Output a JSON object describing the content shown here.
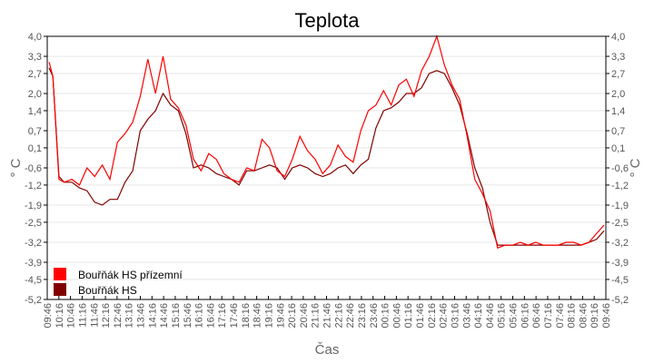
{
  "chart_data": {
    "type": "line",
    "title": "Teplota",
    "xlabel": "Čas",
    "ylabel": "° C",
    "ylim": [
      -5.2,
      4.0
    ],
    "grid": true,
    "legend_position": "bottom-left",
    "y_ticks": [
      "4,0",
      "3,3",
      "2,7",
      "2,0",
      "1,4",
      "0,7",
      "0,1",
      "-0,6",
      "-1,2",
      "-1,9",
      "-2,5",
      "-3,2",
      "-3,9",
      "-4,5",
      "-5,2"
    ],
    "y_tick_values": [
      4.0,
      3.3,
      2.7,
      2.0,
      1.4,
      0.7,
      0.1,
      -0.6,
      -1.2,
      -1.9,
      -2.5,
      -3.2,
      -3.9,
      -4.5,
      -5.2
    ],
    "x_ticks": [
      "09:46",
      "10:16",
      "10:46",
      "11:16",
      "11:46",
      "12:16",
      "12:46",
      "13:16",
      "13:46",
      "14:16",
      "14:46",
      "15:16",
      "15:46",
      "16:16",
      "16:46",
      "17:16",
      "17:46",
      "18:16",
      "18:46",
      "19:16",
      "19:46",
      "20:16",
      "20:46",
      "21:16",
      "21:46",
      "22:16",
      "22:46",
      "23:16",
      "23:46",
      "00:16",
      "00:46",
      "01:16",
      "01:46",
      "02:16",
      "02:46",
      "03:16",
      "03:46",
      "04:16",
      "04:46",
      "05:16",
      "05:46",
      "06:16",
      "06:46",
      "07:16",
      "07:46",
      "08:16",
      "08:46",
      "09:16",
      "09:46"
    ],
    "series": [
      {
        "name": "Bouřňák HS přízemní",
        "color": "#ff0000",
        "values": [
          3.1,
          2.6,
          -1.0,
          -1.1,
          -1.0,
          -1.2,
          -0.6,
          -0.9,
          -0.5,
          -1.0,
          0.3,
          0.6,
          1.0,
          1.9,
          3.2,
          2.0,
          3.3,
          1.8,
          1.5,
          0.9,
          -0.3,
          -0.7,
          -0.1,
          -0.3,
          -0.8,
          -1.0,
          -1.1,
          -0.6,
          -0.7,
          0.4,
          0.1,
          -0.7,
          -0.9,
          -0.3,
          0.5,
          0.0,
          -0.3,
          -0.8,
          -0.5,
          0.2,
          -0.2,
          -0.4,
          0.7,
          1.4,
          1.6,
          2.1,
          1.6,
          2.3,
          2.5,
          1.9,
          2.8,
          3.3,
          4.0,
          3.0,
          2.3,
          1.8,
          0.5,
          -1.0,
          -1.5,
          -2.1,
          -3.4,
          -3.3,
          -3.3,
          -3.2,
          -3.3,
          -3.2,
          -3.3,
          -3.3,
          -3.3,
          -3.2,
          -3.2,
          -3.3,
          -3.2,
          -2.9,
          -2.6
        ],
        "x_positions": [
          0,
          0.5,
          1.3,
          2,
          3,
          4,
          5,
          6,
          7,
          8,
          9,
          10,
          11,
          12,
          13,
          14,
          15,
          16,
          17,
          18,
          19,
          20,
          21,
          22,
          23,
          24,
          25,
          26,
          27,
          28,
          29,
          30,
          31,
          32,
          33,
          34,
          35,
          36,
          37,
          38,
          39,
          40,
          41,
          42,
          43,
          44,
          45,
          46,
          47,
          48,
          49,
          50,
          51,
          52,
          53,
          54,
          55,
          56,
          57,
          58,
          59,
          60,
          61,
          62,
          63,
          64,
          65,
          66,
          67,
          68,
          69,
          70,
          71,
          72,
          73
        ]
      },
      {
        "name": "Bouřňák HS",
        "color": "#800000",
        "values": [
          2.9,
          2.6,
          -0.9,
          -1.1,
          -1.1,
          -1.3,
          -1.4,
          -1.8,
          -1.9,
          -1.7,
          -1.7,
          -1.1,
          -0.7,
          0.7,
          1.1,
          1.4,
          2.0,
          1.6,
          1.4,
          0.6,
          -0.6,
          -0.5,
          -0.6,
          -0.8,
          -0.9,
          -1.0,
          -1.2,
          -0.7,
          -0.7,
          -0.6,
          -0.5,
          -0.6,
          -1.0,
          -0.6,
          -0.5,
          -0.6,
          -0.8,
          -0.9,
          -0.8,
          -0.6,
          -0.5,
          -0.8,
          -0.5,
          -0.3,
          0.8,
          1.4,
          1.5,
          1.7,
          2.0,
          2.0,
          2.2,
          2.7,
          2.8,
          2.7,
          2.2,
          1.6,
          0.6,
          -0.6,
          -1.3,
          -2.5,
          -3.3,
          -3.3,
          -3.3,
          -3.3,
          -3.3,
          -3.3,
          -3.3,
          -3.3,
          -3.3,
          -3.3,
          -3.3,
          -3.3,
          -3.2,
          -3.1,
          -2.8
        ],
        "x_positions": [
          0,
          0.5,
          1.3,
          2,
          3,
          4,
          5,
          6,
          7,
          8,
          9,
          10,
          11,
          12,
          13,
          14,
          15,
          16,
          17,
          18,
          19,
          20,
          21,
          22,
          23,
          24,
          25,
          26,
          27,
          28,
          29,
          30,
          31,
          32,
          33,
          34,
          35,
          36,
          37,
          38,
          39,
          40,
          41,
          42,
          43,
          44,
          45,
          46,
          47,
          48,
          49,
          50,
          51,
          52,
          53,
          54,
          55,
          56,
          57,
          58,
          59,
          60,
          61,
          62,
          63,
          64,
          65,
          66,
          67,
          68,
          69,
          70,
          71,
          72,
          73
        ]
      }
    ]
  },
  "legend": {
    "items": [
      {
        "label": "Bouřňák HS přízemní",
        "color": "#ff0000"
      },
      {
        "label": "Bouřňák HS",
        "color": "#800000"
      }
    ]
  }
}
